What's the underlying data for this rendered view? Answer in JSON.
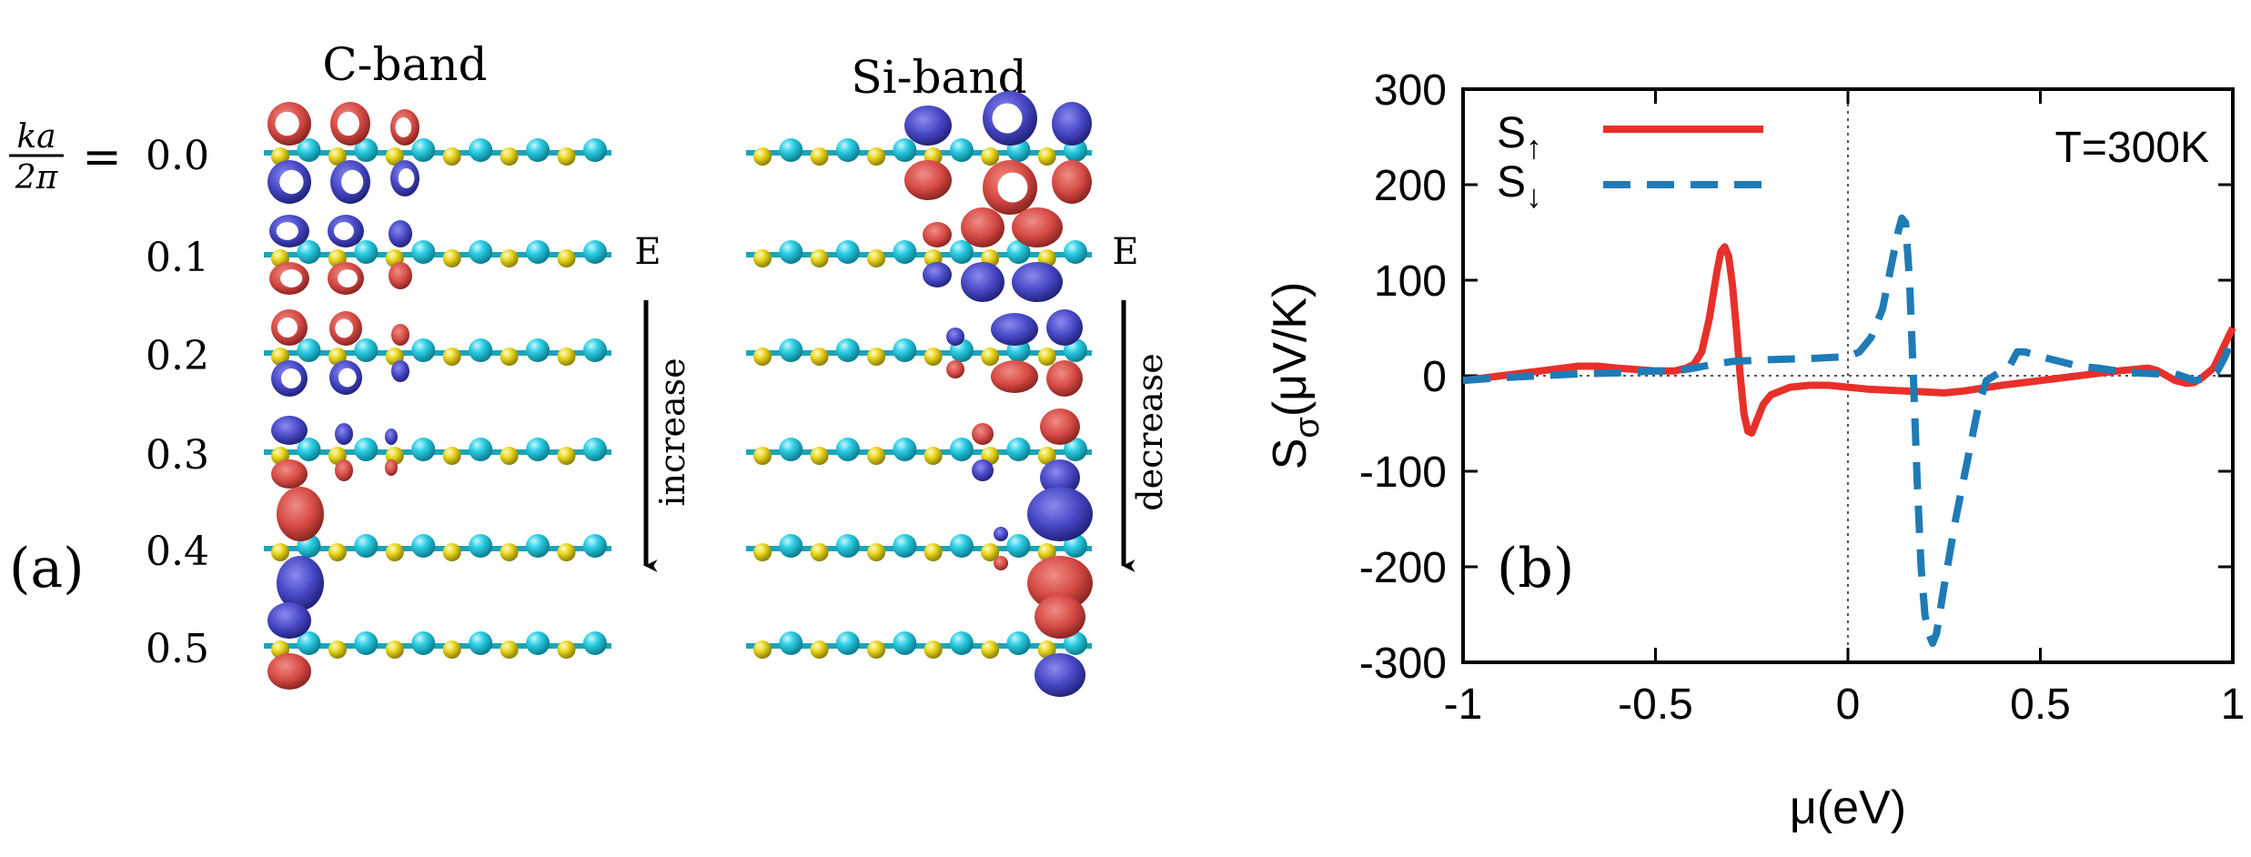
{
  "panel_a": {
    "label": "(a)",
    "ka_symbol": {
      "numerator": "ka",
      "denominator": "2π",
      "equals": "="
    },
    "k_values": [
      "0.0",
      "0.1",
      "0.2",
      "0.3",
      "0.4",
      "0.5"
    ],
    "c_band": {
      "title": "C-band",
      "energy_label": "E",
      "trend_label": "increase"
    },
    "si_band": {
      "title": "Si-band",
      "energy_label": "E",
      "trend_label": "decrease"
    },
    "colors": {
      "positive_lobe": "#d9534f",
      "negative_lobe": "#4b4bbf",
      "carbon_atom": "#22c5dc",
      "silicon_atom": "#e6d21e",
      "bond": "#1aa5b8"
    }
  },
  "chart_data": {
    "type": "line",
    "panel_label": "(b)",
    "annotation": "T=300K",
    "xlabel": "μ(eV)",
    "ylabel": {
      "main": "S",
      "sub": "σ",
      "unit": "(μV/K)"
    },
    "xlim": [
      -1,
      1
    ],
    "ylim": [
      -300,
      300
    ],
    "x_ticks": [
      -1,
      -0.5,
      0,
      0.5,
      1
    ],
    "x_tick_labels": [
      "-1",
      "-0.5",
      "0",
      "0.5",
      "1"
    ],
    "y_ticks": [
      -300,
      -200,
      -100,
      0,
      100,
      200,
      300
    ],
    "y_tick_labels": [
      "-300",
      "-200",
      "-100",
      "0",
      "100",
      "200",
      "300"
    ],
    "grid": false,
    "reference_lines": {
      "x": 0,
      "y": 0
    },
    "legend": {
      "placement": "top-left",
      "entries": [
        {
          "main": "S",
          "sub": "↑"
        },
        {
          "main": "S",
          "sub": "↓"
        }
      ]
    },
    "series": [
      {
        "color": "#e8302a",
        "dash": "solid",
        "x": [
          -1,
          -0.9,
          -0.8,
          -0.7,
          -0.65,
          -0.6,
          -0.5,
          -0.45,
          -0.42,
          -0.4,
          -0.38,
          -0.36,
          -0.34,
          -0.33,
          -0.32,
          -0.31,
          -0.3,
          -0.29,
          -0.28,
          -0.27,
          -0.26,
          -0.25,
          -0.24,
          -0.22,
          -0.2,
          -0.15,
          -0.1,
          -0.05,
          0,
          0.05,
          0.1,
          0.15,
          0.2,
          0.25,
          0.3,
          0.35,
          0.4,
          0.5,
          0.6,
          0.7,
          0.78,
          0.8,
          0.82,
          0.85,
          0.88,
          0.9,
          0.92,
          0.95,
          0.97,
          0.99,
          1
        ],
        "y": [
          -5,
          0,
          5,
          10,
          10,
          8,
          5,
          5,
          8,
          12,
          25,
          60,
          110,
          130,
          135,
          125,
          95,
          50,
          0,
          -40,
          -58,
          -60,
          -50,
          -30,
          -20,
          -12,
          -10,
          -10,
          -12,
          -14,
          -15,
          -16,
          -17,
          -18,
          -16,
          -13,
          -10,
          -5,
          0,
          5,
          8,
          6,
          2,
          -5,
          -8,
          -7,
          -2,
          8,
          25,
          42,
          50
        ]
      },
      {
        "color": "#1f7bb6",
        "dash": "dashed",
        "x": [
          -1,
          -0.9,
          -0.8,
          -0.7,
          -0.6,
          -0.5,
          -0.45,
          -0.4,
          -0.35,
          -0.3,
          -0.25,
          -0.2,
          -0.1,
          0,
          0.03,
          0.06,
          0.09,
          0.11,
          0.13,
          0.14,
          0.15,
          0.16,
          0.17,
          0.18,
          0.19,
          0.2,
          0.21,
          0.22,
          0.23,
          0.25,
          0.28,
          0.31,
          0.34,
          0.36,
          0.38,
          0.42,
          0.44,
          0.46,
          0.5,
          0.55,
          0.6,
          0.65,
          0.7,
          0.75,
          0.8,
          0.85,
          0.88,
          0.9,
          0.93,
          0.96,
          0.98,
          1
        ],
        "y": [
          -5,
          -2,
          0,
          2,
          3,
          5,
          5,
          8,
          12,
          15,
          16,
          17,
          18,
          20,
          25,
          40,
          70,
          110,
          150,
          165,
          160,
          100,
          0,
          -110,
          -200,
          -250,
          -270,
          -280,
          -270,
          -220,
          -150,
          -90,
          -30,
          -5,
          0,
          10,
          25,
          25,
          20,
          15,
          10,
          8,
          5,
          3,
          2,
          2,
          -2,
          -5,
          -3,
          5,
          20,
          40
        ]
      }
    ]
  }
}
